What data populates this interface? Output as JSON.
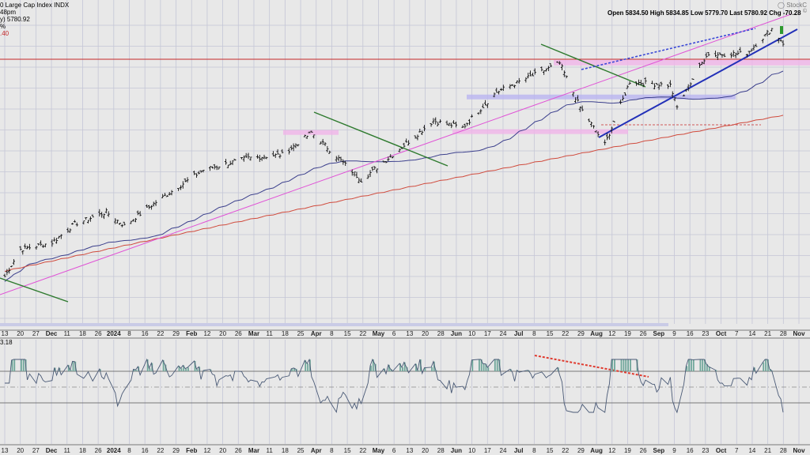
{
  "header": {
    "symbol": "0 Large Cap Index",
    "exchange": "INDX",
    "line2": "48pm",
    "line3": "y) 5780.92",
    "line4": "%",
    "line5": ".40",
    "ohlc": "Open 5834.50  High 5834.85  Low 5779.70  Last 5780.92  Chg -70.28",
    "logo": "StockC",
    "copyright": "©"
  },
  "rsi_header": "3.18",
  "colors": {
    "bg": "#e8e8e8",
    "panel": "#e8e8e8",
    "grid": "#c4c6d6",
    "price": "#111111",
    "ma_short": "#3b3f8c",
    "ma_long": "#d04a3c",
    "trend_magenta": "#e052d6",
    "trend_green": "#2e7a2e",
    "trend_blue": "#2230b8",
    "dotted_blue": "#3a48d6",
    "resistance_red": "#c62828",
    "divergence_red": "#e03a2e",
    "zone_purple": "#b9b4f0",
    "zone_pink": "#f0b4e8",
    "rsi_fill": "#6fa79a",
    "rsi_line": "#4a5a76"
  },
  "chart_data": {
    "type": "ohlc",
    "title": "",
    "price": {
      "ylim": [
        4400,
        5950
      ],
      "key_points": [
        {
          "date": "2023-11-13",
          "close": 4400
        },
        {
          "date": "2023-11-20",
          "close": 4560
        },
        {
          "date": "2023-12-04",
          "close": 4600
        },
        {
          "date": "2023-12-14",
          "close": 4710
        },
        {
          "date": "2023-12-28",
          "close": 4780
        },
        {
          "date": "2024-01-05",
          "close": 4700
        },
        {
          "date": "2024-01-19",
          "close": 4840
        },
        {
          "date": "2024-02-09",
          "close": 5030
        },
        {
          "date": "2024-02-29",
          "close": 5100
        },
        {
          "date": "2024-03-15",
          "close": 5120
        },
        {
          "date": "2024-03-28",
          "close": 5250
        },
        {
          "date": "2024-04-19",
          "close": 4970
        },
        {
          "date": "2024-05-03",
          "close": 5120
        },
        {
          "date": "2024-05-21",
          "close": 5320
        },
        {
          "date": "2024-06-03",
          "close": 5280
        },
        {
          "date": "2024-06-18",
          "close": 5490
        },
        {
          "date": "2024-07-16",
          "close": 5660
        },
        {
          "date": "2024-07-25",
          "close": 5400
        },
        {
          "date": "2024-08-05",
          "close": 5180
        },
        {
          "date": "2024-08-16",
          "close": 5550
        },
        {
          "date": "2024-09-03",
          "close": 5530
        },
        {
          "date": "2024-09-06",
          "close": 5400
        },
        {
          "date": "2024-09-19",
          "close": 5710
        },
        {
          "date": "2024-10-07",
          "close": 5720
        },
        {
          "date": "2024-10-18",
          "close": 5864
        },
        {
          "date": "2024-10-23",
          "close": 5780
        }
      ],
      "ma_short_label": "",
      "ma_long_label": ""
    },
    "rsi": {
      "ylim": [
        0,
        100
      ],
      "levels": [
        70,
        50,
        30
      ]
    },
    "x_ticks": [
      "13",
      "20",
      "27",
      "Dec",
      "11",
      "18",
      "26",
      "2024",
      "8",
      "16",
      "22",
      "29",
      "Feb",
      "12",
      "20",
      "26",
      "Mar",
      "11",
      "18",
      "25",
      "Apr",
      "8",
      "15",
      "22",
      "May",
      "6",
      "13",
      "20",
      "28",
      "Jun",
      "10",
      "17",
      "24",
      "Jul",
      "8",
      "15",
      "22",
      "29",
      "Aug",
      "12",
      "19",
      "26",
      "Sep",
      "9",
      "16",
      "23",
      "Oct",
      "7",
      "14",
      "21",
      "28",
      "Nov"
    ]
  }
}
